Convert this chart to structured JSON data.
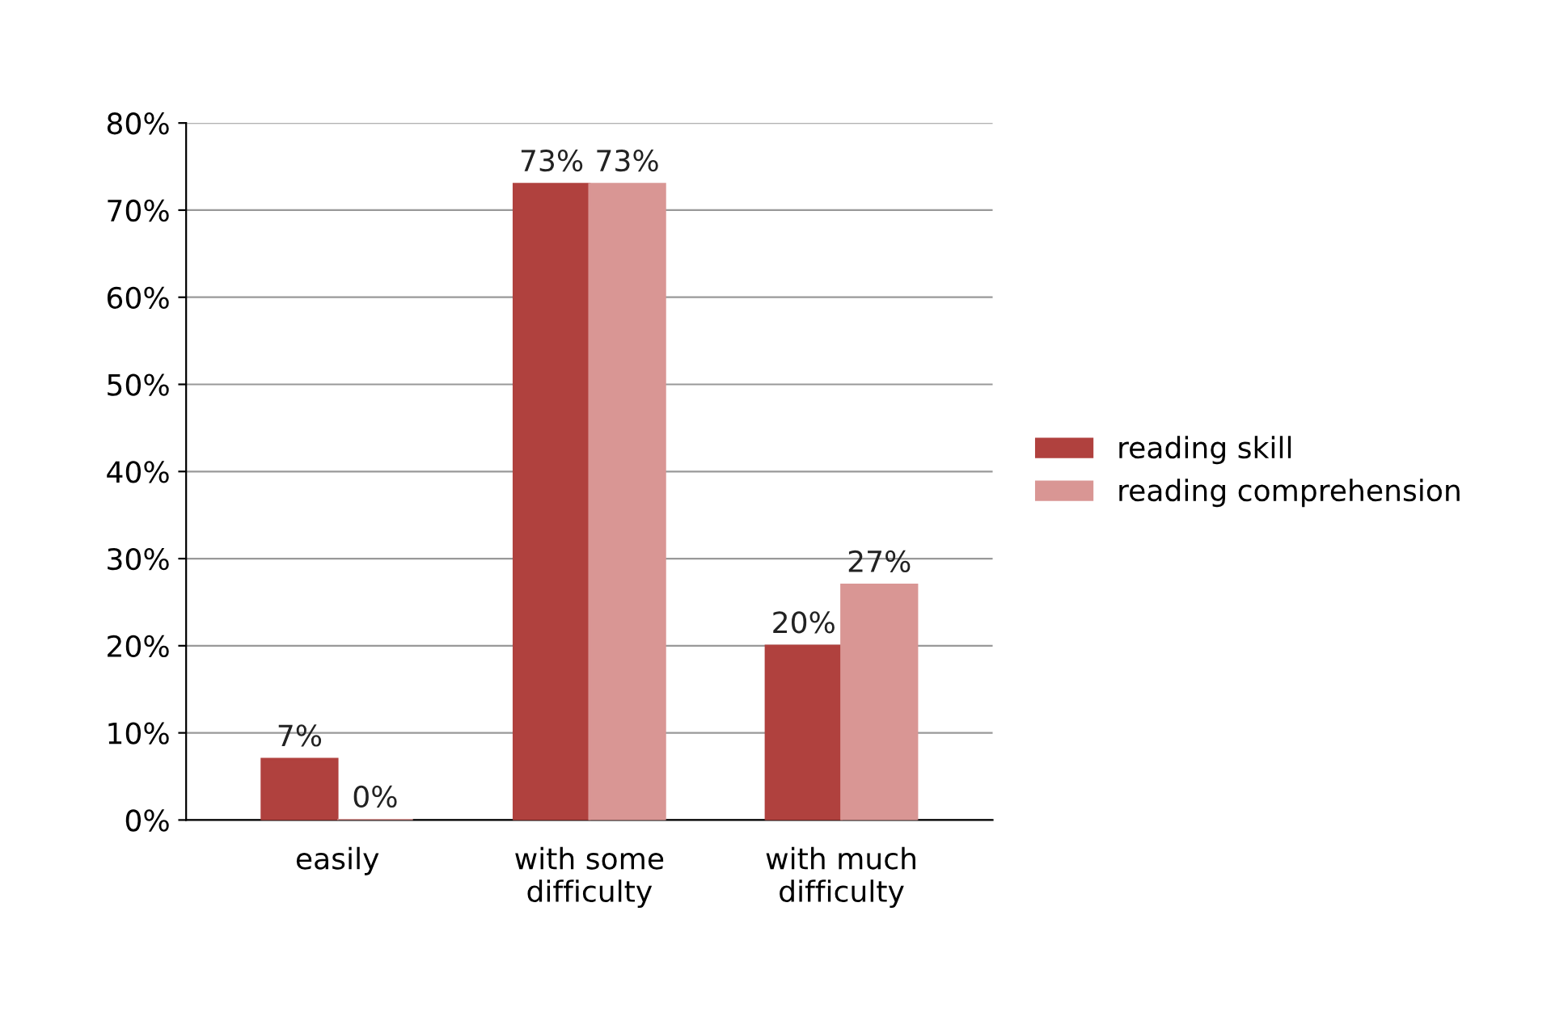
{
  "chart_data": {
    "type": "bar",
    "categories": [
      "easily",
      "with some\ndifficulty",
      "with much\ndifficulty"
    ],
    "series": [
      {
        "name": "reading skill",
        "color": "#b0413e",
        "values": [
          7,
          73,
          20
        ],
        "value_labels": [
          "7%",
          "73%",
          "20%"
        ]
      },
      {
        "name": "reading comprehension",
        "color": "#d99694",
        "values": [
          0,
          73,
          27
        ],
        "value_labels": [
          "0%",
          "73%",
          "27%"
        ]
      }
    ],
    "ylim": [
      0,
      80
    ],
    "yticks": [
      {
        "value": 0,
        "label": "0%"
      },
      {
        "value": 10,
        "label": "10%"
      },
      {
        "value": 20,
        "label": "20%"
      },
      {
        "value": 30,
        "label": "30%"
      },
      {
        "value": 40,
        "label": "40%"
      },
      {
        "value": 50,
        "label": "50%"
      },
      {
        "value": 60,
        "label": "60%"
      },
      {
        "value": 70,
        "label": "70%"
      },
      {
        "value": 80,
        "label": "80%"
      }
    ],
    "grid": "y",
    "legend": "right"
  }
}
